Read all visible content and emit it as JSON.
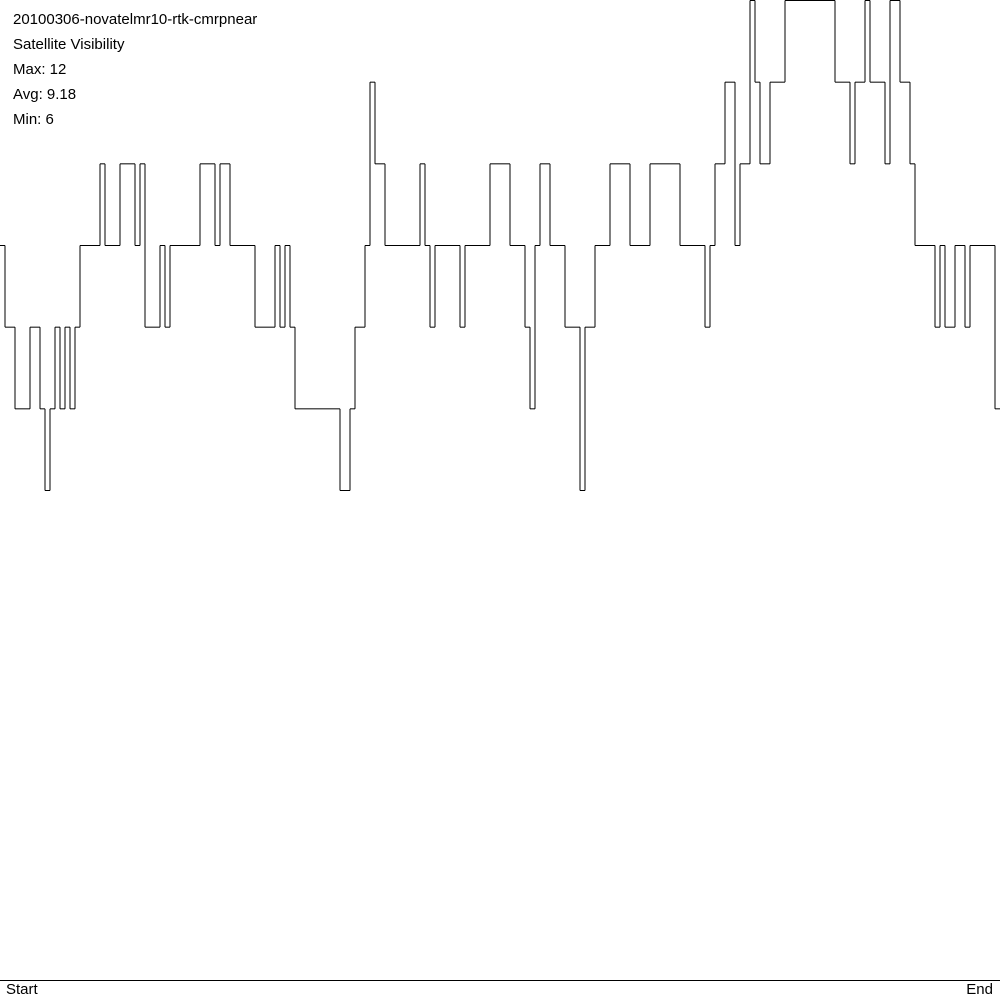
{
  "chart_data": {
    "type": "step",
    "title": "20100306-novatelmr10-rtk-cmrpnear",
    "subtitle": "Satellite Visibility",
    "annotations": [
      "Max: 12",
      "Avg: 9.18",
      "Min: 6"
    ],
    "x_start_label": "Start",
    "x_end_label": "End",
    "color": "#000000",
    "ylim": [
      0,
      12
    ],
    "values": [
      9,
      8,
      8,
      7,
      7,
      7,
      8,
      8,
      7,
      6,
      7,
      8,
      7,
      8,
      7,
      8,
      9,
      9,
      9,
      9,
      10,
      9,
      9,
      9,
      10,
      10,
      10,
      9,
      10,
      8,
      8,
      8,
      9,
      8,
      9,
      9,
      9,
      9,
      9,
      9,
      10,
      10,
      10,
      9,
      10,
      10,
      9,
      9,
      9,
      9,
      9,
      8,
      8,
      8,
      8,
      9,
      8,
      9,
      8,
      7,
      7,
      7,
      7,
      7,
      7,
      7,
      7,
      7,
      6,
      6,
      7,
      8,
      8,
      9,
      11,
      10,
      10,
      9,
      9,
      9,
      9,
      9,
      9,
      9,
      10,
      9,
      8,
      9,
      9,
      9,
      9,
      9,
      8,
      9,
      9,
      9,
      9,
      9,
      10,
      10,
      10,
      10,
      9,
      9,
      9,
      8,
      7,
      9,
      10,
      10,
      9,
      9,
      9,
      8,
      8,
      8,
      6,
      8,
      8,
      9,
      9,
      9,
      10,
      10,
      10,
      10,
      9,
      9,
      9,
      9,
      10,
      10,
      10,
      10,
      10,
      10,
      9,
      9,
      9,
      9,
      9,
      8,
      9,
      10,
      10,
      11,
      11,
      9,
      10,
      10,
      12,
      11,
      10,
      10,
      11,
      11,
      11,
      12,
      12,
      12,
      12,
      12,
      12,
      12,
      12,
      12,
      12,
      11,
      11,
      11,
      10,
      11,
      11,
      12,
      11,
      11,
      11,
      10,
      12,
      12,
      11,
      11,
      10,
      9,
      9,
      9,
      9,
      8,
      9,
      8,
      8,
      9,
      9,
      8,
      9,
      9,
      9,
      9,
      9,
      7
    ]
  }
}
